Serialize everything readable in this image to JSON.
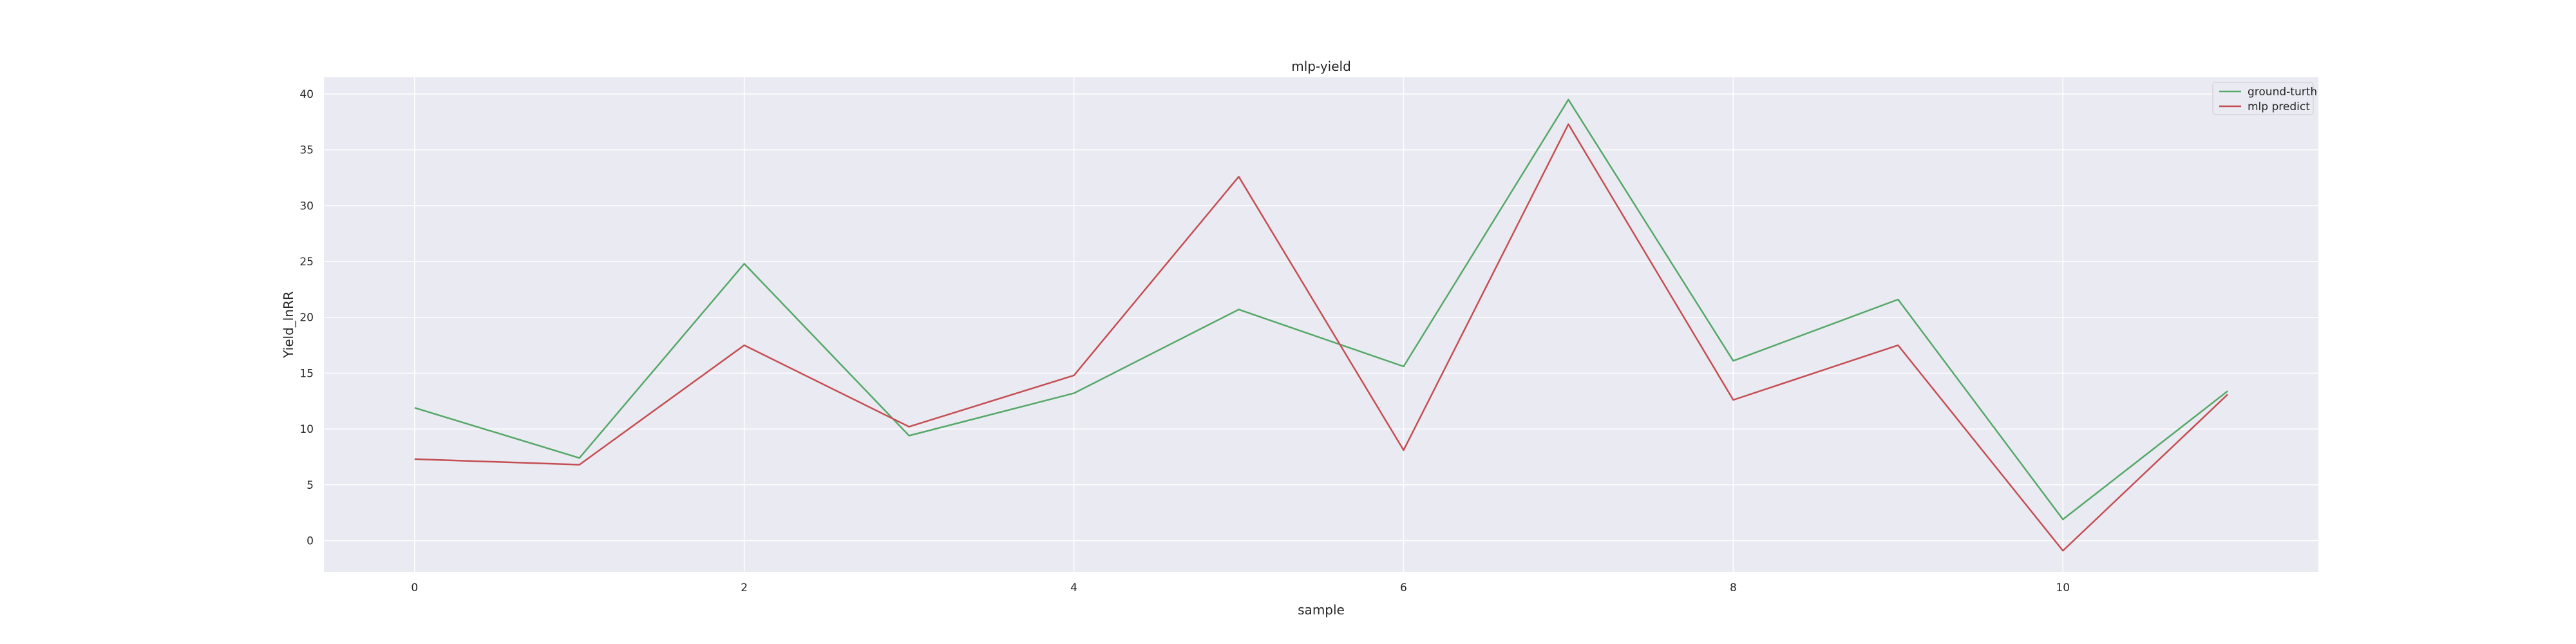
{
  "chart_data": {
    "type": "line",
    "title": "mlp-yield",
    "xlabel": "sample",
    "ylabel": "Yield_lnRR",
    "x": [
      0,
      1,
      2,
      3,
      4,
      5,
      6,
      7,
      8,
      9,
      10,
      11
    ],
    "xticks": [
      0,
      2,
      4,
      6,
      8,
      10
    ],
    "yticks": [
      0,
      5,
      10,
      15,
      20,
      25,
      30,
      35,
      40
    ],
    "xlim": [
      -0.55,
      11.55
    ],
    "ylim": [
      -2.8,
      41.5
    ],
    "grid": true,
    "legend": "top-right",
    "background_color": "#eaeaf2",
    "grid_color": "#ffffff",
    "series": [
      {
        "name": "ground-turth",
        "color": "#55a868",
        "values": [
          11.9,
          7.4,
          24.8,
          9.4,
          13.2,
          20.7,
          15.6,
          39.5,
          16.1,
          21.6,
          1.9,
          13.4
        ]
      },
      {
        "name": "mlp predict",
        "color": "#c44e52",
        "values": [
          7.3,
          6.8,
          17.5,
          10.2,
          14.8,
          32.6,
          8.1,
          37.3,
          12.6,
          17.5,
          -0.9,
          13.1
        ]
      }
    ]
  }
}
